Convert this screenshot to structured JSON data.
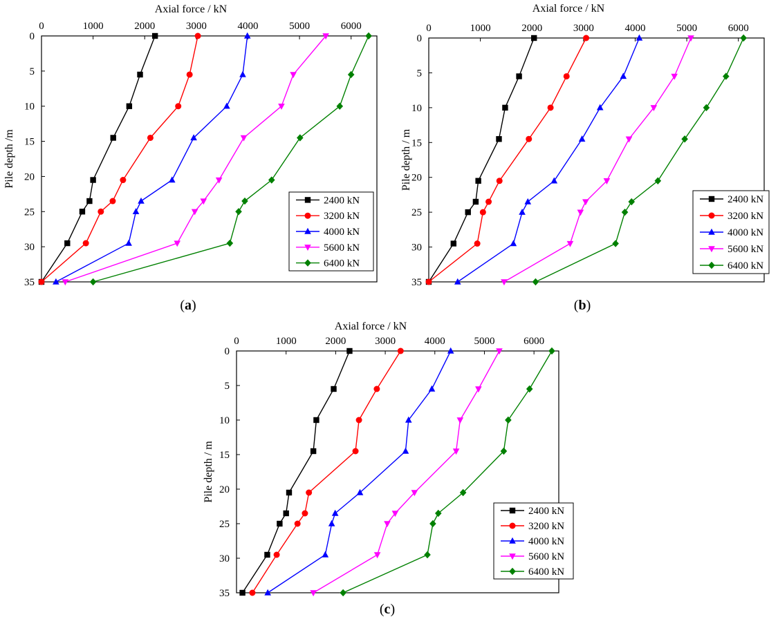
{
  "chart_data": [
    {
      "type": "line",
      "panel_label": "(a)",
      "xlabel": "Axial force  / kN",
      "ylabel": "Pile depth /m",
      "xlim": [
        0,
        6500
      ],
      "ylim": [
        0,
        35
      ],
      "xticks": [
        0,
        1000,
        2000,
        3000,
        4000,
        5000,
        6000
      ],
      "xtick_labels": [
        "0",
        "1000",
        "2000",
        "3000",
        "4000",
        "5000",
        "6000"
      ],
      "yticks": [
        0,
        5,
        10,
        15,
        20,
        25,
        30,
        35
      ],
      "ytick_labels": [
        "0",
        "5",
        "10",
        "15",
        "20",
        "25",
        "30",
        "35"
      ],
      "grid": false,
      "legend_position": "right",
      "series": [
        {
          "name": "2400 kN",
          "color": "#000000",
          "marker": "square",
          "x": [
            2200,
            1910,
            1700,
            1390,
            1000,
            930,
            790,
            500,
            0
          ],
          "y": [
            0,
            5.5,
            10,
            14.5,
            20.5,
            23.5,
            25,
            29.5,
            35
          ]
        },
        {
          "name": "3200 kN",
          "color": "#ff0000",
          "marker": "circle",
          "x": [
            3030,
            2870,
            2650,
            2110,
            1580,
            1380,
            1150,
            860,
            0
          ],
          "y": [
            0,
            5.5,
            10,
            14.5,
            20.5,
            23.5,
            25,
            29.5,
            35
          ]
        },
        {
          "name": "4000 kN",
          "color": "#0000ff",
          "marker": "triangle-up",
          "x": [
            3990,
            3900,
            3590,
            2950,
            2530,
            1930,
            1830,
            1690,
            280
          ],
          "y": [
            0,
            5.5,
            10,
            14.5,
            20.5,
            23.5,
            25,
            29.5,
            35
          ]
        },
        {
          "name": "5600 kN",
          "color": "#ff00ff",
          "marker": "triangle-down",
          "x": [
            5510,
            4880,
            4650,
            3920,
            3440,
            3140,
            2970,
            2630,
            460
          ],
          "y": [
            0,
            5.5,
            10,
            14.5,
            20.5,
            23.5,
            25,
            29.5,
            35
          ]
        },
        {
          "name": "6400 kN",
          "color": "#008000",
          "marker": "diamond",
          "x": [
            6340,
            6000,
            5780,
            5010,
            4460,
            3940,
            3820,
            3650,
            1000
          ],
          "y": [
            0,
            5.5,
            10,
            14.5,
            20.5,
            23.5,
            25,
            29.5,
            35
          ]
        }
      ]
    },
    {
      "type": "line",
      "panel_label": "(b)",
      "xlabel": "Axial force  / kN",
      "ylabel": "Pile depth / m",
      "xlim": [
        0,
        6500
      ],
      "ylim": [
        0,
        35
      ],
      "xticks": [
        0,
        1000,
        2000,
        3000,
        4000,
        5000,
        6000
      ],
      "xtick_labels": [
        "0",
        "1000",
        "2000",
        "3000",
        "4000",
        "5000",
        "6000"
      ],
      "yticks": [
        0,
        5,
        10,
        15,
        20,
        25,
        30,
        35
      ],
      "ytick_labels": [
        "0",
        "5",
        "10",
        "15",
        "20",
        "25",
        "30",
        "35"
      ],
      "grid": false,
      "legend_position": "right",
      "series": [
        {
          "name": "2400 kN",
          "color": "#000000",
          "marker": "square",
          "x": [
            2040,
            1750,
            1480,
            1360,
            960,
            910,
            760,
            480,
            0
          ],
          "y": [
            0,
            5.5,
            10,
            14.5,
            20.5,
            23.5,
            25,
            29.5,
            35
          ]
        },
        {
          "name": "3200 kN",
          "color": "#ff0000",
          "marker": "circle",
          "x": [
            3050,
            2670,
            2360,
            1940,
            1370,
            1160,
            1050,
            940,
            0
          ],
          "y": [
            0,
            5.5,
            10,
            14.5,
            20.5,
            23.5,
            25,
            29.5,
            35
          ]
        },
        {
          "name": "4000 kN",
          "color": "#0000ff",
          "marker": "triangle-up",
          "x": [
            4080,
            3770,
            3320,
            2970,
            2430,
            1920,
            1810,
            1640,
            560
          ],
          "y": [
            0,
            5.5,
            10,
            14.5,
            20.5,
            23.5,
            25,
            29.5,
            35
          ]
        },
        {
          "name": "5600 kN",
          "color": "#ff00ff",
          "marker": "triangle-down",
          "x": [
            5080,
            4760,
            4360,
            3880,
            3450,
            3040,
            2940,
            2740,
            1460
          ],
          "y": [
            0,
            5.5,
            10,
            14.5,
            20.5,
            23.5,
            25,
            29.5,
            35
          ]
        },
        {
          "name": "6400 kN",
          "color": "#008000",
          "marker": "diamond",
          "x": [
            6100,
            5760,
            5380,
            4960,
            4440,
            3930,
            3800,
            3620,
            2070
          ],
          "y": [
            0,
            5.5,
            10,
            14.5,
            20.5,
            23.5,
            25,
            29.5,
            35
          ]
        }
      ]
    },
    {
      "type": "line",
      "panel_label": "(c)",
      "xlabel": "Axial force / kN",
      "ylabel": "Pile depth / m",
      "xlim": [
        0,
        6500
      ],
      "ylim": [
        0,
        35
      ],
      "xticks": [
        0,
        1000,
        2000,
        3000,
        4000,
        5000,
        6000
      ],
      "xtick_labels": [
        "0",
        "1000",
        "2000",
        "3000",
        "4000",
        "5000",
        "6000"
      ],
      "yticks": [
        0,
        5,
        10,
        15,
        20,
        25,
        30,
        35
      ],
      "ytick_labels": [
        "0",
        "5",
        "10",
        "15",
        "20",
        "25",
        "30",
        "35"
      ],
      "grid": false,
      "legend_position": "right",
      "series": [
        {
          "name": "2400 kN",
          "color": "#000000",
          "marker": "square",
          "x": [
            2280,
            1960,
            1610,
            1550,
            1060,
            1000,
            870,
            620,
            120
          ],
          "y": [
            0,
            5.5,
            10,
            14.5,
            20.5,
            23.5,
            25,
            29.5,
            35
          ]
        },
        {
          "name": "3200 kN",
          "color": "#ff0000",
          "marker": "circle",
          "x": [
            3310,
            2830,
            2470,
            2400,
            1460,
            1380,
            1230,
            810,
            320
          ],
          "y": [
            0,
            5.5,
            10,
            14.5,
            20.5,
            23.5,
            25,
            29.5,
            35
          ]
        },
        {
          "name": "4000 kN",
          "color": "#0000ff",
          "marker": "triangle-up",
          "x": [
            4320,
            3940,
            3470,
            3410,
            2490,
            1990,
            1920,
            1790,
            630
          ],
          "y": [
            0,
            5.5,
            10,
            14.5,
            20.5,
            23.5,
            25,
            29.5,
            35
          ]
        },
        {
          "name": "5600 kN",
          "color": "#ff00ff",
          "marker": "triangle-down",
          "x": [
            5300,
            4880,
            4510,
            4430,
            3590,
            3200,
            3040,
            2840,
            1550
          ],
          "y": [
            0,
            5.5,
            10,
            14.5,
            20.5,
            23.5,
            25,
            29.5,
            35
          ]
        },
        {
          "name": "6400 kN",
          "color": "#008000",
          "marker": "diamond",
          "x": [
            6360,
            5910,
            5480,
            5390,
            4570,
            4070,
            3960,
            3850,
            2150
          ],
          "y": [
            0,
            5.5,
            10,
            14.5,
            20.5,
            23.5,
            25,
            29.5,
            35
          ]
        }
      ]
    }
  ]
}
